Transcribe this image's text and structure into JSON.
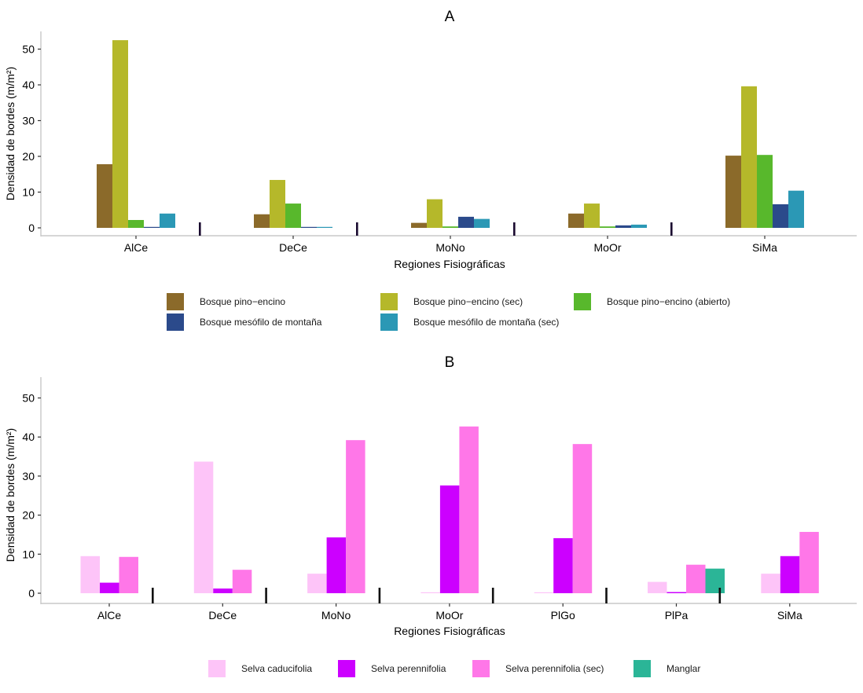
{
  "chart_data": [
    {
      "type": "bar",
      "title": "A",
      "xlabel": "Regiones Fisiográficas",
      "ylabel": "Densidad de bordes (m/m²)",
      "ylim": [
        -2.5,
        55
      ],
      "yticks": [
        0,
        10,
        20,
        30,
        40,
        50
      ],
      "grid": false,
      "legend_position": "bottom",
      "categories": [
        "AlCe",
        "DeCe",
        "MoNo",
        "MoOr",
        "SiMa"
      ],
      "series": [
        {
          "name": "Bosque pino−encino",
          "color": "#8B6A2A",
          "values": [
            17.8,
            3.8,
            1.4,
            4.0,
            20.2
          ]
        },
        {
          "name": "Bosque pino−encino (sec)",
          "color": "#B5B82A",
          "values": [
            52.5,
            13.4,
            8.0,
            6.8,
            39.6
          ]
        },
        {
          "name": "Bosque pino−encino (abierto)",
          "color": "#58B82C",
          "values": [
            2.2,
            6.8,
            0.4,
            0.4,
            20.4
          ]
        },
        {
          "name": "Bosque mesófilo de montaña",
          "color": "#2B4A8B",
          "values": [
            0.1,
            0.1,
            3.1,
            0.7,
            6.6
          ]
        },
        {
          "name": "Bosque mesófilo de montaña (sec)",
          "color": "#2B98B5",
          "values": [
            4.0,
            0.1,
            2.5,
            0.9,
            10.4
          ]
        }
      ]
    },
    {
      "type": "bar",
      "title": "B",
      "xlabel": "Regiones Fisiográficas",
      "ylabel": "Densidad de bordes (m/m²)",
      "ylim": [
        -2.5,
        55
      ],
      "yticks": [
        0,
        10,
        20,
        30,
        40,
        50
      ],
      "grid": false,
      "legend_position": "bottom",
      "categories": [
        "AlCe",
        "DeCe",
        "MoNo",
        "MoOr",
        "PlGo",
        "PlPa",
        "SiMa"
      ],
      "series": [
        {
          "name": "Selva caducifolia",
          "color": "#FDC4F8",
          "values": [
            9.5,
            33.7,
            5.0,
            0.1,
            0.1,
            2.9,
            5.0
          ]
        },
        {
          "name": "Selva perennifolia",
          "color": "#CC00FF",
          "values": [
            2.7,
            1.2,
            14.3,
            27.6,
            14.1,
            0.3,
            9.5
          ]
        },
        {
          "name": "Selva perennifolia (sec)",
          "color": "#FF77E8",
          "values": [
            9.3,
            6.0,
            39.2,
            42.7,
            38.2,
            7.3,
            15.7
          ]
        },
        {
          "name": "Manglar",
          "color": "#2BB597",
          "values": [
            0,
            0,
            0,
            0,
            0,
            6.3,
            0
          ]
        }
      ]
    }
  ]
}
